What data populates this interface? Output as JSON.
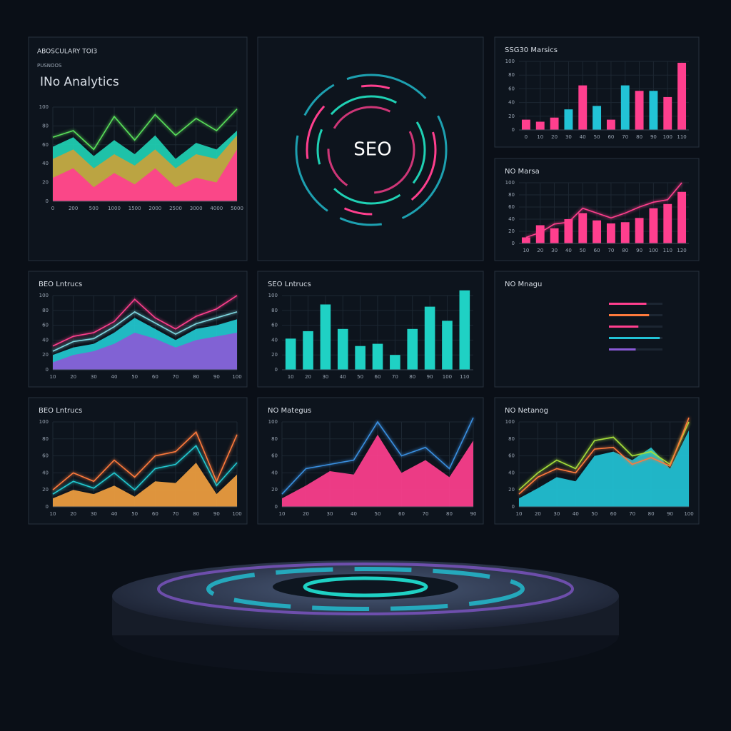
{
  "center_panel": {
    "label": "SEO"
  },
  "chart_data": [
    {
      "type": "area",
      "kicker": "ABOSCULARY TOI3",
      "subtitle": "PUSNOOS",
      "title": "INo Analytics",
      "categories": [
        "0",
        "200",
        "500",
        "1000",
        "1500",
        "2000",
        "2500",
        "3000",
        "4000",
        "5000"
      ],
      "ylim": [
        0,
        100
      ],
      "yticks": [
        0,
        20,
        40,
        60,
        80,
        100
      ],
      "grid": true,
      "series": [
        {
          "kind": "area",
          "color": "#ff3f8e",
          "values": [
            25,
            35,
            15,
            30,
            18,
            35,
            15,
            25,
            20,
            55
          ]
        },
        {
          "kind": "area",
          "color": "#c9a23a",
          "values": [
            45,
            55,
            35,
            50,
            38,
            55,
            35,
            50,
            45,
            70
          ]
        },
        {
          "kind": "area",
          "color": "#1fd1b4",
          "values": [
            58,
            68,
            48,
            65,
            50,
            70,
            45,
            62,
            55,
            75
          ]
        },
        {
          "kind": "line",
          "color": "#5ae05a",
          "values": [
            68,
            75,
            55,
            90,
            65,
            92,
            70,
            88,
            75,
            98
          ]
        }
      ]
    },
    {
      "type": "bar",
      "title": "SSG30 Marsics",
      "categories": [
        "0",
        "10",
        "20",
        "30",
        "40",
        "50",
        "60",
        "70",
        "80",
        "90",
        "100",
        "110"
      ],
      "ylim": [
        0,
        100
      ],
      "yticks": [
        0,
        20,
        40,
        60,
        80,
        100
      ],
      "grid": true,
      "series": [
        {
          "kind": "bar",
          "colors": [
            "#ff3f8e",
            "#ff3f8e",
            "#ff3f8e",
            "#22c3d6",
            "#ff3f8e",
            "#22c3d6",
            "#ff3f8e",
            "#22c3d6",
            "#ff3f8e",
            "#22c3d6",
            "#ff3f8e",
            "#ff3f8e"
          ],
          "values": [
            15,
            12,
            18,
            30,
            65,
            35,
            15,
            65,
            57,
            57,
            48,
            98
          ]
        }
      ]
    },
    {
      "type": "bar",
      "title": "NO Marsa",
      "categories": [
        "10",
        "20",
        "30",
        "40",
        "50",
        "60",
        "70",
        "80",
        "90",
        "100",
        "110",
        "120"
      ],
      "ylim": [
        0,
        100
      ],
      "yticks": [
        0,
        20,
        40,
        60,
        80,
        100
      ],
      "grid": true,
      "series": [
        {
          "kind": "bar",
          "color": "#ff3f8e",
          "values": [
            10,
            30,
            25,
            40,
            50,
            38,
            33,
            35,
            42,
            58,
            65,
            85
          ]
        },
        {
          "kind": "line",
          "color": "#ff3f8e",
          "values": [
            10,
            18,
            32,
            35,
            58,
            50,
            42,
            50,
            60,
            68,
            72,
            100
          ]
        }
      ]
    },
    {
      "type": "area",
      "title": "BEO Lntrucs",
      "categories": [
        "10",
        "20",
        "30",
        "40",
        "50",
        "60",
        "70",
        "80",
        "90",
        "100"
      ],
      "ylim": [
        0,
        100
      ],
      "yticks": [
        0,
        20,
        40,
        60,
        80,
        100
      ],
      "grid": true,
      "series": [
        {
          "kind": "area",
          "color": "#8a5ad6",
          "values": [
            10,
            20,
            25,
            35,
            50,
            42,
            30,
            40,
            45,
            50
          ]
        },
        {
          "kind": "area",
          "color": "#22c9d0",
          "values": [
            20,
            30,
            35,
            50,
            70,
            55,
            40,
            55,
            60,
            68
          ]
        },
        {
          "kind": "line",
          "color": "#7fd7e0",
          "values": [
            25,
            38,
            42,
            58,
            78,
            63,
            48,
            62,
            70,
            78
          ]
        },
        {
          "kind": "line",
          "color": "#ff3f8e",
          "values": [
            32,
            45,
            50,
            65,
            95,
            70,
            55,
            72,
            82,
            100
          ]
        }
      ]
    },
    {
      "type": "bar",
      "title": "SEO Lntrucs",
      "categories": [
        "10",
        "20",
        "30",
        "40",
        "50",
        "60",
        "70",
        "80",
        "90",
        "100",
        "110"
      ],
      "ylim": [
        0,
        100
      ],
      "yticks": [
        0,
        20,
        40,
        60,
        80,
        100
      ],
      "grid": true,
      "series": [
        {
          "kind": "bar",
          "color": "#1fd1c4",
          "values": [
            42,
            52,
            88,
            55,
            32,
            35,
            20,
            55,
            85,
            66,
            107
          ]
        }
      ]
    },
    {
      "type": "hbar",
      "title": "NO Mnagu",
      "xlim": [
        0,
        100
      ],
      "series": [
        {
          "kind": "hbar",
          "colors": [
            "#ff3f8e",
            "#ff7a3c",
            "#ff3f8e",
            "#22c3d6",
            "#8a5ad6"
          ],
          "values": [
            70,
            75,
            55,
            95,
            50
          ]
        }
      ]
    },
    {
      "type": "area",
      "title": "BEO Lntrucs",
      "categories": [
        "10",
        "20",
        "30",
        "40",
        "50",
        "60",
        "70",
        "80",
        "90",
        "100"
      ],
      "ylim": [
        0,
        100
      ],
      "yticks": [
        0,
        20,
        40,
        60,
        80,
        100
      ],
      "grid": true,
      "series": [
        {
          "kind": "area",
          "color": "#f0a040",
          "values": [
            10,
            20,
            15,
            25,
            12,
            30,
            28,
            52,
            15,
            38
          ]
        },
        {
          "kind": "line",
          "color": "#22c9d0",
          "values": [
            15,
            30,
            22,
            40,
            20,
            45,
            50,
            72,
            25,
            52
          ]
        },
        {
          "kind": "line",
          "color": "#ff7a3c",
          "values": [
            20,
            40,
            30,
            55,
            35,
            60,
            65,
            88,
            30,
            85
          ]
        }
      ]
    },
    {
      "type": "area",
      "title": "NO Mategus",
      "categories": [
        "10",
        "20",
        "30",
        "40",
        "50",
        "60",
        "70",
        "80",
        "90"
      ],
      "ylim": [
        0,
        100
      ],
      "yticks": [
        0,
        20,
        40,
        60,
        80,
        100
      ],
      "grid": true,
      "series": [
        {
          "kind": "area",
          "color": "#ff3f8e",
          "values": [
            10,
            25,
            42,
            38,
            85,
            40,
            55,
            35,
            78
          ]
        },
        {
          "kind": "line",
          "color": "#3a8fe0",
          "values": [
            15,
            45,
            50,
            55,
            100,
            60,
            70,
            45,
            105
          ]
        }
      ]
    },
    {
      "type": "area",
      "title": "NO Netanog",
      "categories": [
        "10",
        "20",
        "30",
        "40",
        "50",
        "60",
        "70",
        "80",
        "90",
        "100"
      ],
      "ylim": [
        0,
        100
      ],
      "yticks": [
        0,
        20,
        40,
        60,
        80,
        100
      ],
      "grid": true,
      "series": [
        {
          "kind": "area",
          "color": "#22c3d6",
          "values": [
            10,
            22,
            35,
            30,
            60,
            65,
            55,
            70,
            45,
            90
          ]
        },
        {
          "kind": "line",
          "color": "#a6e03a",
          "values": [
            20,
            40,
            55,
            45,
            78,
            82,
            60,
            65,
            50,
            100
          ]
        },
        {
          "kind": "line",
          "color": "#ff7a3c",
          "values": [
            15,
            35,
            45,
            40,
            68,
            70,
            50,
            58,
            48,
            105
          ]
        }
      ]
    }
  ]
}
